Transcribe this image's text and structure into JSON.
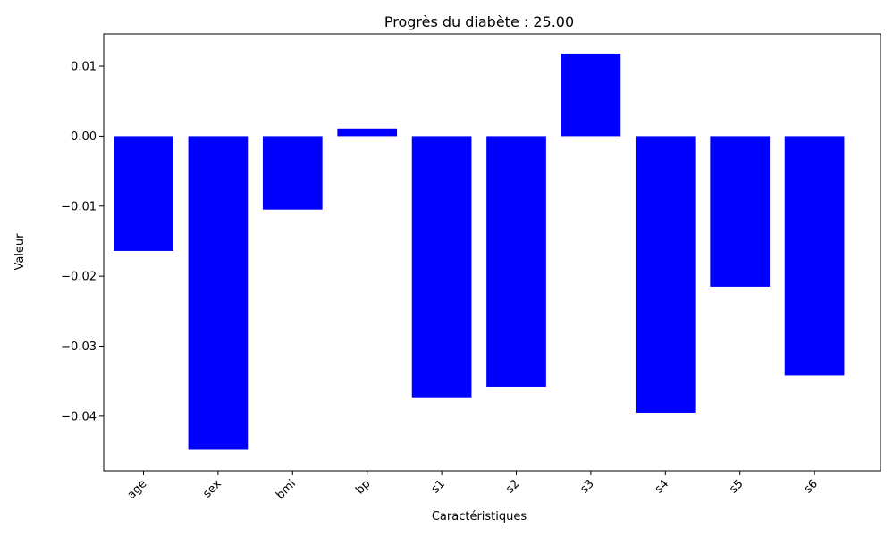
{
  "chart_data": {
    "type": "bar",
    "title": "Progrès du diabète : 25.00",
    "xlabel": "Caractéristiques",
    "ylabel": "Valeur",
    "categories": [
      "age",
      "sex",
      "bmi",
      "bp",
      "s1",
      "s2",
      "s3",
      "s4",
      "s5",
      "s6"
    ],
    "values": [
      -0.0164,
      -0.0448,
      -0.0105,
      0.0011,
      -0.0373,
      -0.0358,
      0.0118,
      -0.0395,
      -0.0215,
      -0.0342
    ],
    "ylim": [
      -0.0478,
      0.0146
    ],
    "yticks": [
      0.01,
      0.0,
      -0.01,
      -0.02,
      -0.03,
      -0.04
    ],
    "ytick_labels": [
      "0.01",
      "0.00",
      "−0.01",
      "−0.02",
      "−0.03",
      "−0.04"
    ],
    "bar_color": "#0000ff",
    "grid": false
  }
}
